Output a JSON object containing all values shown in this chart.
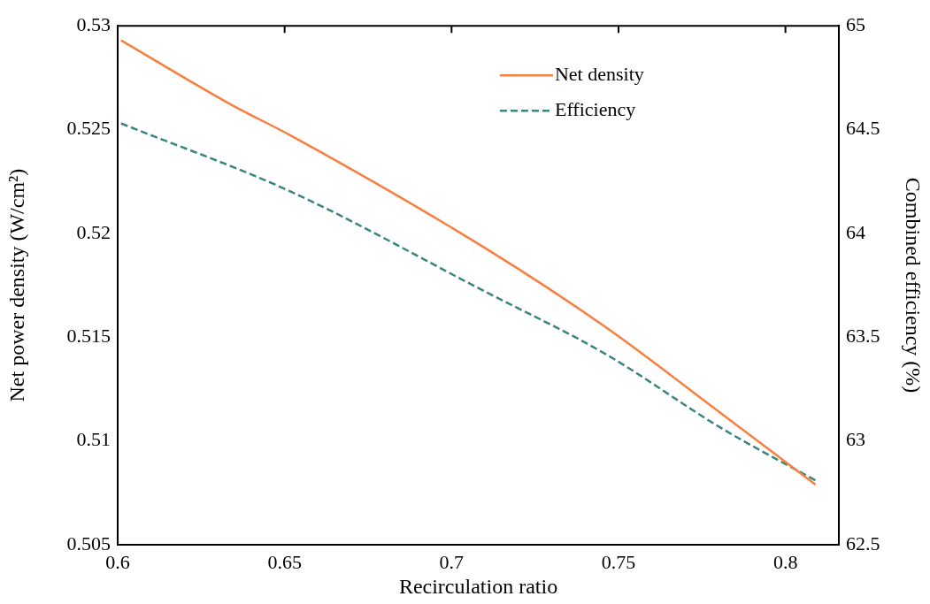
{
  "chart_data": {
    "type": "line",
    "xlabel": "Recirculation ratio",
    "ylabel": "Net power density (W/cm²)",
    "y2label": "Combined efficiency (%)",
    "xlim": [
      0.6,
      0.816
    ],
    "xticks": [
      0.6,
      0.65,
      0.7,
      0.75,
      0.8
    ],
    "ylim": [
      0.505,
      0.53
    ],
    "yticks": [
      0.505,
      0.51,
      0.515,
      0.52,
      0.525,
      0.53
    ],
    "y2lim": [
      62.5,
      65
    ],
    "y2ticks": [
      62.5,
      63,
      63.5,
      64,
      64.5,
      65
    ],
    "legend": "top right",
    "grid": false,
    "marker": "none",
    "series": [
      {
        "name": "Net density",
        "color": "#f97f3f",
        "line_style": "solid",
        "x": [
          0.601,
          0.634,
          0.652,
          0.71,
          0.746,
          0.781,
          0.809
        ],
        "values": [
          0.5293,
          0.5262,
          0.5247,
          0.5193,
          0.5155,
          0.5113,
          0.5079
        ]
      },
      {
        "name": "Efficiency",
        "color": "#3a8580",
        "line_style": "dashed",
        "axis": "y2",
        "x": [
          0.601,
          0.652,
          0.71,
          0.746,
          0.781,
          0.809
        ],
        "values": [
          64.53,
          64.2,
          63.72,
          63.42,
          63.06,
          62.81
        ]
      }
    ]
  }
}
